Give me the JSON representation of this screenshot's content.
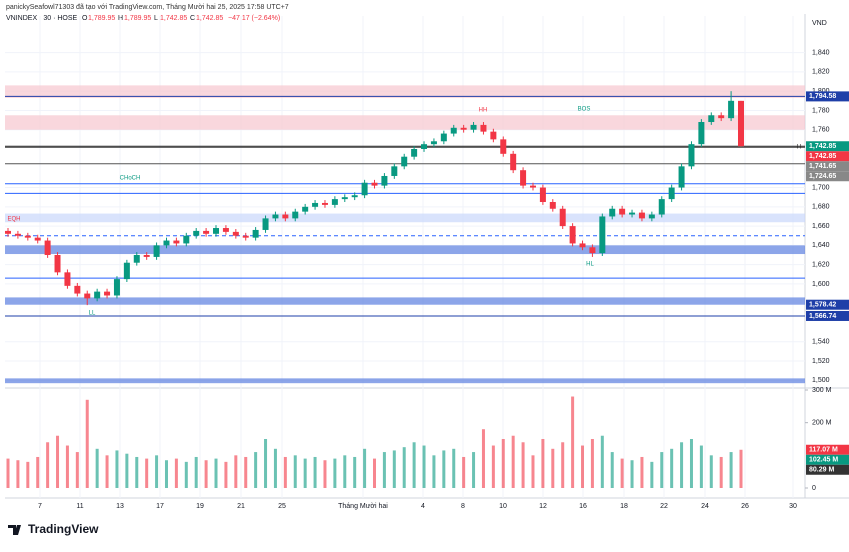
{
  "header": {
    "credit": "panickySeafowl71303 đã tạo với TradingView.com, Tháng Mười hai 25, 2025 17:58 UTC+7",
    "symbol": "VNINDEX · 30 · HOSE",
    "ohlc": [
      {
        "key": "O",
        "value": "1,789.95"
      },
      {
        "key": "H",
        "value": "1,789.95"
      },
      {
        "key": "L",
        "value": "1,742.85"
      },
      {
        "key": "C",
        "value": "1,742.85"
      }
    ],
    "change": "−47.17 (−2.64%)"
  },
  "chart_data": {
    "type": "candlestick",
    "currency": "VND",
    "up_color": "#089981",
    "down_color": "#f23645",
    "grid": true,
    "ylim": [
      1492,
      1878
    ],
    "yticks": [
      {
        "value": 1840,
        "label": "1,840"
      },
      {
        "value": 1820,
        "label": "1,820"
      },
      {
        "value": 1800,
        "label": "1,800"
      },
      {
        "value": 1780,
        "label": "1,780"
      },
      {
        "value": 1760,
        "label": "1,760"
      },
      {
        "value": 1700,
        "label": "1,700"
      },
      {
        "value": 1680,
        "label": "1,680"
      },
      {
        "value": 1660,
        "label": "1,660"
      },
      {
        "value": 1640,
        "label": "1,640"
      },
      {
        "value": 1620,
        "label": "1,620"
      },
      {
        "value": 1600,
        "label": "1,600"
      },
      {
        "value": 1540,
        "label": "1,540"
      },
      {
        "value": 1520,
        "label": "1,520"
      },
      {
        "value": 1500,
        "label": "1,500"
      }
    ],
    "x_labels": [
      "7",
      "11",
      "13",
      "17",
      "19",
      "21",
      "25",
      "Tháng Mười hai",
      "4",
      "8",
      "10",
      "12",
      "16",
      "18",
      "22",
      "24",
      "26",
      "30"
    ],
    "ohlc": {
      "open": [
        1655,
        1652,
        1650,
        1648,
        1645,
        1630,
        1612,
        1598,
        1590,
        1585,
        1592,
        1588,
        1605,
        1622,
        1630,
        1628,
        1640,
        1645,
        1642,
        1650,
        1655,
        1652,
        1658,
        1654,
        1650,
        1648,
        1656,
        1668,
        1672,
        1668,
        1675,
        1680,
        1684,
        1682,
        1688,
        1690,
        1692,
        1705,
        1702,
        1712,
        1722,
        1732,
        1740,
        1745,
        1748,
        1756,
        1762,
        1760,
        1765,
        1758,
        1750,
        1735,
        1718,
        1702,
        1700,
        1685,
        1678,
        1660,
        1642,
        1638,
        1632,
        1670,
        1678,
        1672,
        1674,
        1668,
        1672,
        1688,
        1700,
        1722,
        1745,
        1768,
        1775,
        1772,
        1789.95
      ],
      "high": [
        1658,
        1655,
        1653,
        1651,
        1648,
        1633,
        1615,
        1601,
        1593,
        1595,
        1595,
        1608,
        1625,
        1633,
        1633,
        1643,
        1648,
        1648,
        1653,
        1658,
        1658,
        1661,
        1661,
        1657,
        1653,
        1659,
        1671,
        1675,
        1675,
        1678,
        1683,
        1687,
        1687,
        1691,
        1693,
        1695,
        1708,
        1708,
        1715,
        1725,
        1735,
        1743,
        1748,
        1751,
        1759,
        1765,
        1765,
        1768,
        1768,
        1761,
        1753,
        1738,
        1721,
        1705,
        1703,
        1688,
        1681,
        1663,
        1645,
        1641,
        1673,
        1681,
        1681,
        1677,
        1677,
        1675,
        1691,
        1703,
        1725,
        1748,
        1771,
        1778,
        1778,
        1800,
        1789.95
      ],
      "low": [
        1649,
        1647,
        1645,
        1642,
        1627,
        1609,
        1595,
        1587,
        1578,
        1582,
        1585,
        1585,
        1602,
        1619,
        1625,
        1625,
        1637,
        1639,
        1639,
        1647,
        1649,
        1649,
        1651,
        1647,
        1645,
        1645,
        1653,
        1665,
        1665,
        1665,
        1672,
        1677,
        1679,
        1679,
        1685,
        1687,
        1689,
        1699,
        1699,
        1709,
        1719,
        1729,
        1737,
        1742,
        1745,
        1753,
        1757,
        1757,
        1755,
        1747,
        1732,
        1715,
        1699,
        1697,
        1682,
        1675,
        1657,
        1639,
        1635,
        1628,
        1629,
        1667,
        1669,
        1669,
        1665,
        1665,
        1669,
        1685,
        1697,
        1719,
        1742,
        1765,
        1769,
        1769,
        1742.85
      ],
      "close": [
        1652,
        1650,
        1648,
        1645,
        1630,
        1612,
        1598,
        1590,
        1585,
        1592,
        1588,
        1605,
        1622,
        1630,
        1628,
        1640,
        1645,
        1642,
        1650,
        1655,
        1652,
        1658,
        1654,
        1650,
        1648,
        1656,
        1668,
        1672,
        1668,
        1675,
        1680,
        1684,
        1682,
        1688,
        1690,
        1692,
        1705,
        1702,
        1712,
        1722,
        1732,
        1740,
        1745,
        1748,
        1756,
        1762,
        1760,
        1765,
        1758,
        1750,
        1735,
        1718,
        1702,
        1700,
        1685,
        1678,
        1660,
        1642,
        1638,
        1632,
        1670,
        1678,
        1672,
        1674,
        1668,
        1672,
        1688,
        1700,
        1722,
        1745,
        1768,
        1775,
        1772,
        1790,
        1742.85
      ]
    },
    "volume": {
      "ylim": [
        0,
        300
      ],
      "yticks": [
        {
          "value": 300,
          "label": "300 M"
        },
        {
          "value": 200,
          "label": "200 M"
        },
        0
      ],
      "values": [
        90,
        85,
        80,
        95,
        140,
        160,
        130,
        110,
        270,
        120,
        100,
        115,
        105,
        95,
        90,
        100,
        85,
        90,
        80,
        95,
        85,
        90,
        80,
        100,
        95,
        110,
        150,
        120,
        95,
        100,
        90,
        95,
        85,
        90,
        100,
        95,
        120,
        90,
        110,
        115,
        125,
        140,
        130,
        100,
        115,
        120,
        95,
        110,
        180,
        130,
        150,
        160,
        140,
        100,
        150,
        120,
        140,
        280,
        130,
        150,
        160,
        110,
        90,
        85,
        95,
        80,
        110,
        120,
        140,
        150,
        130,
        100,
        95,
        110,
        117.07
      ],
      "tags": [
        {
          "value": 117.07,
          "label": "117.07 M",
          "color": "#f23645"
        },
        {
          "value": 102.45,
          "label": "102.45 M",
          "color": "#089981"
        },
        {
          "value": 80.29,
          "label": "80.29 M",
          "color": "#333333"
        }
      ]
    },
    "price_tags": [
      {
        "value": 1794.58,
        "label": "1,794.58",
        "color": "#1e3fa8"
      },
      {
        "value": 1742.85,
        "label": "1,742.85",
        "color": "#089981"
      },
      {
        "value": 1742.85,
        "label": "1,742.85",
        "color": "#f23645"
      },
      {
        "value": 1741.65,
        "label": "1,741.65",
        "color": "#888888"
      },
      {
        "value": 1724.65,
        "label": "1,724.65",
        "color": "#888888"
      },
      {
        "value": 1578.42,
        "label": "1,578.42",
        "color": "#1e3fa8"
      },
      {
        "value": 1566.74,
        "label": "1,566.74",
        "color": "#1e3fa8"
      }
    ],
    "levels": [
      {
        "value": 1794.58,
        "color": "#1e3fa8"
      },
      {
        "value": 1566.74,
        "color": "#1e3fa8"
      },
      {
        "value": 1606,
        "color": "#2962ff"
      },
      {
        "value": 1694,
        "color": "#2962ff"
      },
      {
        "value": 1704,
        "color": "#2962ff"
      },
      {
        "value": 1650,
        "color": "#2962ff",
        "dashed": true
      },
      {
        "value": 1741.65,
        "color": "#555555"
      },
      {
        "value": 1724.65,
        "color": "#555555"
      },
      {
        "value": 1742.85,
        "color": "#222222"
      }
    ],
    "zones": [
      {
        "range": [
          1760,
          1775
        ],
        "color": "#f7c6cf"
      },
      {
        "range": [
          1793,
          1806
        ],
        "color": "#f7c6cf"
      },
      {
        "range": [
          1578.42,
          1586
        ],
        "color": "#5b7fe0"
      },
      {
        "range": [
          1631,
          1640
        ],
        "color": "#5b7fe0"
      },
      {
        "range": [
          1664,
          1673
        ],
        "color": "#c9d7fb"
      },
      {
        "range": [
          1497,
          1502
        ],
        "color": "#5b7fe0"
      }
    ],
    "annotations": [
      {
        "text": "CHoCH",
        "color": "#089981"
      },
      {
        "text": "HH",
        "color": "#f23645"
      },
      {
        "text": "BOS",
        "color": "#089981"
      },
      {
        "text": "HL",
        "color": "#089981"
      },
      {
        "text": "LL",
        "color": "#089981"
      },
      {
        "text": "EQH",
        "color": "#f23645"
      },
      {
        "text": "H",
        "color": "#222222"
      }
    ]
  },
  "footer": {
    "brand": "TradingView"
  }
}
